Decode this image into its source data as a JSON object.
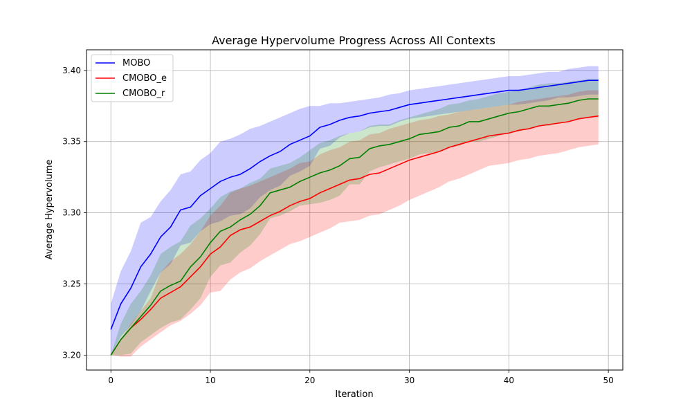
{
  "chart_data": {
    "type": "line",
    "title": "Average Hypervolume Progress Across All Contexts",
    "xlabel": "Iteration",
    "ylabel": "Average Hypervolume",
    "xlim": [
      -2.45,
      51.45
    ],
    "ylim": [
      3.1895,
      3.4145
    ],
    "xticks": [
      0,
      10,
      20,
      30,
      40,
      50
    ],
    "yticks": [
      3.2,
      3.25,
      3.3,
      3.35,
      3.4
    ],
    "xtick_labels": [
      "0",
      "10",
      "20",
      "30",
      "40",
      "50"
    ],
    "ytick_labels": [
      "3.20",
      "3.25",
      "3.30",
      "3.35",
      "3.40"
    ],
    "grid": true,
    "legend_position": "top-left",
    "x": [
      0,
      1,
      2,
      3,
      4,
      5,
      6,
      7,
      8,
      9,
      10,
      11,
      12,
      13,
      14,
      15,
      16,
      17,
      18,
      19,
      20,
      21,
      22,
      23,
      24,
      25,
      26,
      27,
      28,
      29,
      30,
      31,
      32,
      33,
      34,
      35,
      36,
      37,
      38,
      39,
      40,
      41,
      42,
      43,
      44,
      45,
      46,
      47,
      48,
      49
    ],
    "series": [
      {
        "name": "MOBO",
        "color": "#0000ff",
        "band_color": "#0000ff",
        "values": [
          3.218,
          3.236,
          3.247,
          3.262,
          3.271,
          3.283,
          3.29,
          3.302,
          3.304,
          3.312,
          3.317,
          3.322,
          3.325,
          3.327,
          3.331,
          3.336,
          3.34,
          3.343,
          3.348,
          3.351,
          3.354,
          3.36,
          3.362,
          3.365,
          3.367,
          3.368,
          3.37,
          3.371,
          3.372,
          3.374,
          3.376,
          3.377,
          3.378,
          3.379,
          3.38,
          3.381,
          3.382,
          3.383,
          3.384,
          3.385,
          3.386,
          3.386,
          3.387,
          3.388,
          3.389,
          3.39,
          3.391,
          3.392,
          3.393,
          3.393
        ],
        "upper": [
          3.236,
          3.259,
          3.273,
          3.293,
          3.297,
          3.308,
          3.316,
          3.327,
          3.329,
          3.337,
          3.342,
          3.35,
          3.352,
          3.355,
          3.359,
          3.361,
          3.364,
          3.367,
          3.37,
          3.373,
          3.375,
          3.375,
          3.377,
          3.377,
          3.378,
          3.379,
          3.38,
          3.381,
          3.383,
          3.384,
          3.386,
          3.387,
          3.388,
          3.389,
          3.39,
          3.391,
          3.392,
          3.393,
          3.394,
          3.395,
          3.396,
          3.396,
          3.397,
          3.398,
          3.399,
          3.399,
          3.401,
          3.402,
          3.403,
          3.403
        ],
        "lower": [
          3.2,
          3.213,
          3.221,
          3.231,
          3.245,
          3.258,
          3.264,
          3.277,
          3.279,
          3.287,
          3.292,
          3.294,
          3.298,
          3.299,
          3.303,
          3.311,
          3.316,
          3.319,
          3.326,
          3.329,
          3.333,
          3.345,
          3.347,
          3.353,
          3.356,
          3.357,
          3.36,
          3.361,
          3.361,
          3.364,
          3.366,
          3.367,
          3.368,
          3.369,
          3.37,
          3.371,
          3.372,
          3.373,
          3.374,
          3.375,
          3.376,
          3.376,
          3.377,
          3.378,
          3.379,
          3.381,
          3.381,
          3.382,
          3.383,
          3.383
        ]
      },
      {
        "name": "CMOBO_e",
        "color": "#ff0000",
        "band_color": "#ff0000",
        "values": [
          3.2,
          3.211,
          3.219,
          3.225,
          3.232,
          3.24,
          3.244,
          3.248,
          3.255,
          3.262,
          3.271,
          3.276,
          3.284,
          3.288,
          3.29,
          3.294,
          3.298,
          3.301,
          3.305,
          3.308,
          3.31,
          3.314,
          3.317,
          3.32,
          3.323,
          3.324,
          3.327,
          3.328,
          3.331,
          3.334,
          3.337,
          3.339,
          3.341,
          3.343,
          3.346,
          3.348,
          3.35,
          3.352,
          3.354,
          3.355,
          3.356,
          3.358,
          3.359,
          3.361,
          3.362,
          3.363,
          3.364,
          3.366,
          3.367,
          3.368
        ],
        "upper": [
          3.2,
          3.211,
          3.222,
          3.231,
          3.24,
          3.258,
          3.266,
          3.271,
          3.278,
          3.287,
          3.298,
          3.305,
          3.314,
          3.317,
          3.319,
          3.322,
          3.325,
          3.328,
          3.331,
          3.335,
          3.336,
          3.341,
          3.344,
          3.346,
          3.35,
          3.351,
          3.355,
          3.356,
          3.359,
          3.361,
          3.363,
          3.365,
          3.366,
          3.368,
          3.369,
          3.371,
          3.372,
          3.373,
          3.374,
          3.375,
          3.376,
          3.378,
          3.379,
          3.38,
          3.381,
          3.382,
          3.383,
          3.385,
          3.386,
          3.386
        ],
        "lower": [
          3.2,
          3.199,
          3.199,
          3.206,
          3.211,
          3.216,
          3.221,
          3.224,
          3.229,
          3.235,
          3.244,
          3.245,
          3.253,
          3.258,
          3.261,
          3.266,
          3.27,
          3.274,
          3.278,
          3.28,
          3.283,
          3.286,
          3.289,
          3.293,
          3.294,
          3.295,
          3.298,
          3.299,
          3.302,
          3.305,
          3.309,
          3.312,
          3.315,
          3.318,
          3.322,
          3.324,
          3.327,
          3.33,
          3.333,
          3.334,
          3.335,
          3.337,
          3.338,
          3.34,
          3.341,
          3.342,
          3.344,
          3.346,
          3.347,
          3.348
        ]
      },
      {
        "name": "CMOBO_r",
        "color": "#008000",
        "band_color": "#008000",
        "values": [
          3.2,
          3.211,
          3.219,
          3.227,
          3.235,
          3.245,
          3.249,
          3.252,
          3.262,
          3.269,
          3.279,
          3.287,
          3.29,
          3.295,
          3.299,
          3.305,
          3.314,
          3.316,
          3.318,
          3.322,
          3.325,
          3.328,
          3.33,
          3.333,
          3.338,
          3.339,
          3.345,
          3.347,
          3.348,
          3.35,
          3.352,
          3.355,
          3.356,
          3.357,
          3.36,
          3.361,
          3.364,
          3.364,
          3.366,
          3.368,
          3.37,
          3.371,
          3.373,
          3.375,
          3.375,
          3.376,
          3.377,
          3.379,
          3.38,
          3.38
        ],
        "upper": [
          3.2,
          3.222,
          3.236,
          3.245,
          3.256,
          3.271,
          3.276,
          3.28,
          3.291,
          3.296,
          3.303,
          3.311,
          3.315,
          3.317,
          3.321,
          3.324,
          3.331,
          3.333,
          3.335,
          3.339,
          3.344,
          3.349,
          3.351,
          3.354,
          3.356,
          3.357,
          3.361,
          3.362,
          3.362,
          3.365,
          3.367,
          3.369,
          3.371,
          3.373,
          3.376,
          3.377,
          3.379,
          3.38,
          3.382,
          3.384,
          3.385,
          3.386,
          3.388,
          3.39,
          3.391,
          3.391,
          3.392,
          3.393,
          3.394,
          3.394
        ],
        "lower": [
          3.2,
          3.2,
          3.201,
          3.209,
          3.214,
          3.219,
          3.223,
          3.225,
          3.232,
          3.24,
          3.255,
          3.263,
          3.265,
          3.272,
          3.277,
          3.285,
          3.296,
          3.298,
          3.301,
          3.305,
          3.306,
          3.307,
          3.309,
          3.312,
          3.32,
          3.32,
          3.329,
          3.332,
          3.334,
          3.336,
          3.338,
          3.341,
          3.342,
          3.343,
          3.346,
          3.347,
          3.35,
          3.35,
          3.352,
          3.354,
          3.356,
          3.357,
          3.359,
          3.361,
          3.361,
          3.363,
          3.364,
          3.366,
          3.367,
          3.367
        ]
      }
    ]
  }
}
